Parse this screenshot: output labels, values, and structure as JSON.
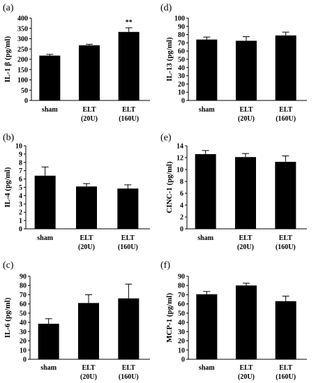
{
  "chart_data": [
    {
      "type": "bar",
      "panel": "(a)",
      "categories": [
        [
          "sham"
        ],
        [
          "ELT",
          "(20U)"
        ],
        [
          "ELT",
          "(160U)"
        ]
      ],
      "values": [
        218,
        268,
        333
      ],
      "errors": [
        6,
        5,
        20
      ],
      "ylabel": "IL-1 β (pg/ml)",
      "ylim": [
        0,
        400
      ],
      "yticks": [
        0,
        50,
        100,
        150,
        200,
        250,
        300,
        350,
        400
      ],
      "annotations": [
        {
          "category_index": 2,
          "text": "**"
        }
      ]
    },
    {
      "type": "bar",
      "panel": "(b)",
      "categories": [
        [
          "sham"
        ],
        [
          "ELT",
          "(20U)"
        ],
        [
          "ELT",
          "(160U)"
        ]
      ],
      "values": [
        6.4,
        5.1,
        4.85
      ],
      "errors": [
        1.05,
        0.35,
        0.45
      ],
      "ylabel": "IL-4 (pg/ml)",
      "ylim": [
        0,
        10
      ],
      "yticks": [
        0,
        1,
        2,
        3,
        4,
        5,
        6,
        7,
        8,
        9,
        10
      ],
      "annotations": []
    },
    {
      "type": "bar",
      "panel": "(c)",
      "categories": [
        [
          "sham"
        ],
        [
          "ELT",
          "(20U)"
        ],
        [
          "ELT",
          "(160U)"
        ]
      ],
      "values": [
        38.5,
        61,
        66
      ],
      "errors": [
        5.5,
        9,
        15.5
      ],
      "ylabel": "IL-6 (pg/ml)",
      "ylim": [
        0,
        90
      ],
      "yticks": [
        0,
        10,
        20,
        30,
        40,
        50,
        60,
        70,
        80,
        90
      ],
      "annotations": []
    },
    {
      "type": "bar",
      "panel": "(d)",
      "categories": [
        [
          "sham"
        ],
        [
          "ELT",
          "(20U)"
        ],
        [
          "ELT",
          "(160U)"
        ]
      ],
      "values": [
        74,
        72.5,
        79
      ],
      "errors": [
        3,
        5,
        4
      ],
      "ylabel": "IL-13 (pg/ml)",
      "ylim": [
        0,
        100
      ],
      "yticks": [
        0,
        10,
        20,
        30,
        40,
        50,
        60,
        70,
        80,
        90,
        100
      ],
      "annotations": []
    },
    {
      "type": "bar",
      "panel": "(e)",
      "categories": [
        [
          "sham"
        ],
        [
          "ELT",
          "(20U)"
        ],
        [
          "ELT",
          "(160U)"
        ]
      ],
      "values": [
        12.6,
        12.1,
        11.3
      ],
      "errors": [
        0.6,
        0.6,
        1
      ],
      "ylabel": "CINC-1 (pg/ml)",
      "ylim": [
        0,
        14
      ],
      "yticks": [
        0,
        2,
        4,
        6,
        8,
        10,
        12,
        14
      ],
      "annotations": []
    },
    {
      "type": "bar",
      "panel": "(f)",
      "categories": [
        [
          "sham"
        ],
        [
          "ELT",
          "(20U)"
        ],
        [
          "ELT",
          "(160U)"
        ]
      ],
      "values": [
        70.5,
        80,
        63
      ],
      "errors": [
        3,
        2.5,
        5.5
      ],
      "ylabel": "MCP-1 (pg/ml)",
      "ylim": [
        0,
        90
      ],
      "yticks": [
        0,
        10,
        20,
        30,
        40,
        50,
        60,
        70,
        80,
        90
      ],
      "annotations": []
    }
  ]
}
